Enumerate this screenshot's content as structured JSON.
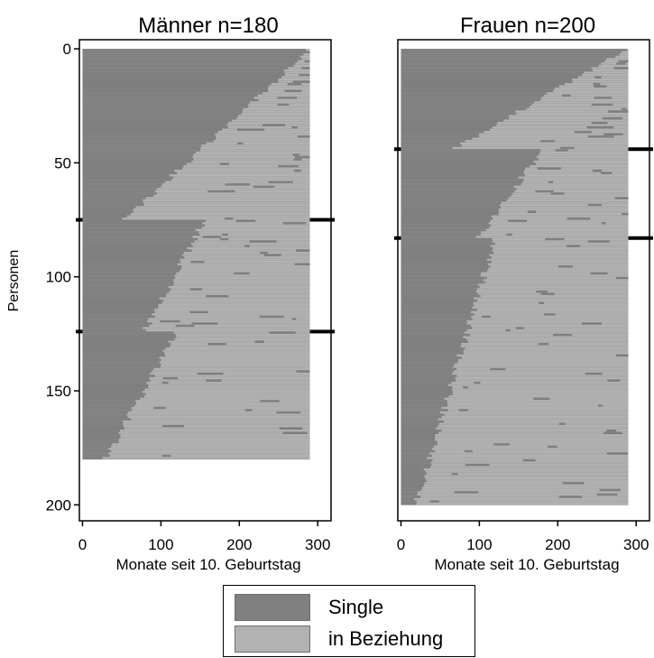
{
  "chart_data": [
    {
      "type": "sequence-index",
      "title": "Männer n=180",
      "xlabel": "Monate seit 10. Geburtstag",
      "ylabel": "Personen",
      "n": 180,
      "months": 290,
      "xlim": [
        -4,
        317
      ],
      "ylim": [
        -4,
        207
      ],
      "xticks": [
        0,
        100,
        200,
        300
      ],
      "yticks": [
        0,
        50,
        100,
        150,
        200
      ],
      "cluster_boundaries": [
        75,
        124
      ],
      "groups": [
        {
          "from": 0,
          "to": 75,
          "transition_start_month": 290,
          "transition_end_month": 55
        },
        {
          "from": 75,
          "to": 124,
          "transition_start_month": 155,
          "transition_end_month": 80
        },
        {
          "from": 124,
          "to": 180,
          "transition_start_month": 120,
          "transition_end_month": 30
        }
      ]
    },
    {
      "type": "sequence-index",
      "title": "Frauen n=200",
      "xlabel": "Monate seit 10. Geburtstag",
      "ylabel": "",
      "n": 200,
      "months": 290,
      "xlim": [
        -4,
        317
      ],
      "ylim": [
        -4,
        207
      ],
      "xticks": [
        0,
        100,
        200,
        300
      ],
      "yticks": [],
      "cluster_boundaries": [
        44,
        83
      ],
      "groups": [
        {
          "from": 0,
          "to": 44,
          "transition_start_month": 285,
          "transition_end_month": 70
        },
        {
          "from": 44,
          "to": 83,
          "transition_start_month": 180,
          "transition_end_month": 100
        },
        {
          "from": 83,
          "to": 200,
          "transition_start_month": 120,
          "transition_end_month": 20
        }
      ]
    }
  ],
  "legend": {
    "items": [
      {
        "label": "Single",
        "color": "#808080"
      },
      {
        "label": "in Beziehung",
        "color": "#b2b2b2"
      }
    ]
  },
  "colors": {
    "single": "#808080",
    "relationship": "#b2b2b2",
    "row_line": "#6f6f6f"
  }
}
